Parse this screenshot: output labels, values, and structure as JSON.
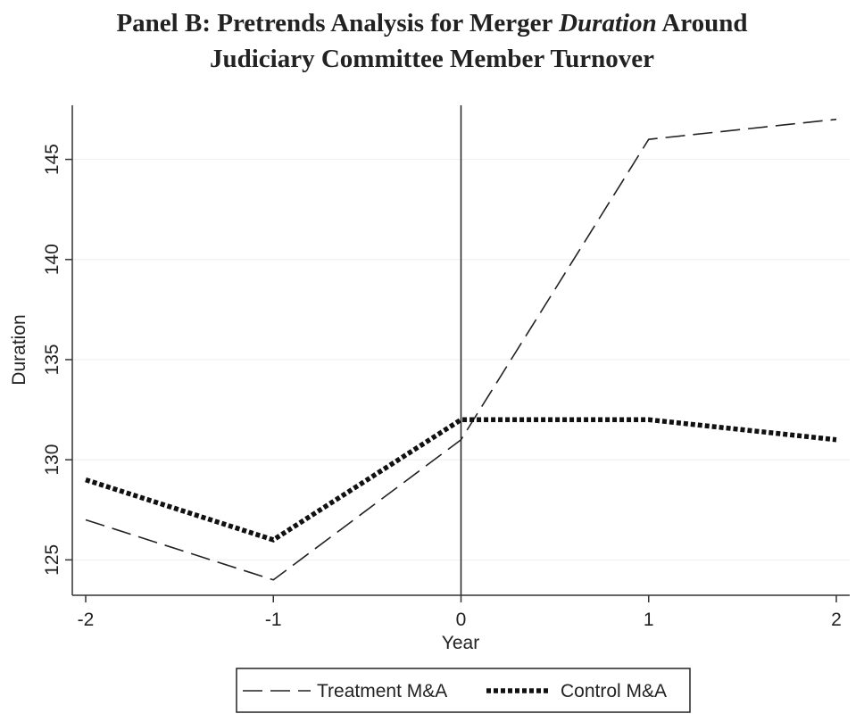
{
  "chart_data": {
    "type": "line",
    "title_line1_pre": "Panel B: Pretrends Analysis for Merger ",
    "title_line1_em": "Duration",
    "title_line1_post": " Around",
    "title_line2": "Judiciary Committee Member Turnover",
    "xlabel": "Year",
    "ylabel": "Duration",
    "x": [
      -2,
      -1,
      0,
      1,
      2
    ],
    "xlim": [
      -2,
      2
    ],
    "ylim": [
      123.5,
      147.7
    ],
    "xticks": [
      -2,
      -1,
      0,
      1,
      2
    ],
    "yticks": [
      125,
      130,
      135,
      140,
      145
    ],
    "grid": true,
    "reference_line_x": 0,
    "series": [
      {
        "name": "Treatment M&A",
        "style": "dashed",
        "color": "#222222",
        "values": [
          127,
          124,
          131,
          146,
          147
        ]
      },
      {
        "name": "Control M&A",
        "style": "dotted-thick",
        "color": "#111111",
        "values": [
          129,
          126,
          132,
          132,
          131
        ]
      }
    ],
    "legend_position": "bottom"
  }
}
